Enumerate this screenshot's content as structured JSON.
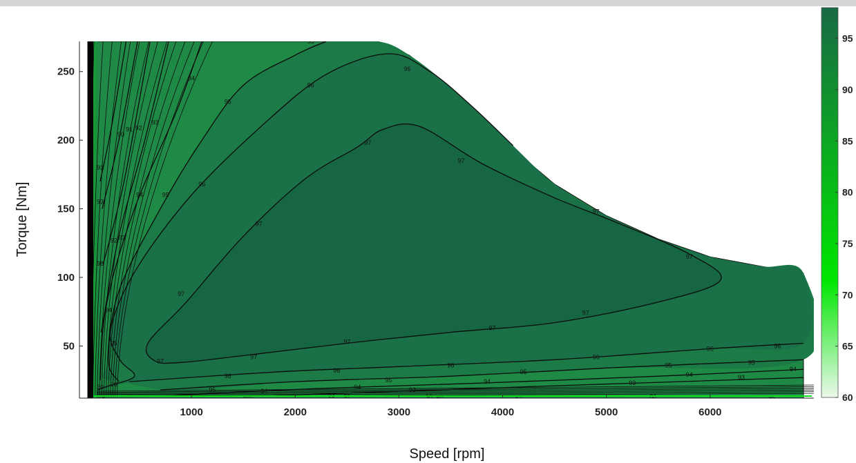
{
  "chart_data": {
    "type": "contour",
    "xlabel": "Speed [rpm]",
    "ylabel": "Torque [Nm]",
    "xlim": [
      0,
      7000
    ],
    "ylim": [
      12,
      272
    ],
    "xticks": [
      1000,
      2000,
      3000,
      4000,
      5000,
      6000
    ],
    "yticks": [
      50,
      100,
      150,
      200,
      250
    ],
    "colorbar": {
      "range": [
        60,
        98
      ],
      "ticks": [
        60,
        65,
        70,
        75,
        80,
        85,
        90,
        95
      ],
      "colors": {
        "low": "#eaf8ea",
        "mid": "#00e600",
        "high": "#186944"
      }
    },
    "max_torque_curve": [
      {
        "x": 0,
        "y": 272
      },
      {
        "x": 2800,
        "y": 272
      },
      {
        "x": 3100,
        "y": 262
      },
      {
        "x": 3500,
        "y": 238
      },
      {
        "x": 4000,
        "y": 200
      },
      {
        "x": 4500,
        "y": 168
      },
      {
        "x": 5000,
        "y": 145
      },
      {
        "x": 5500,
        "y": 128
      },
      {
        "x": 6000,
        "y": 115
      },
      {
        "x": 6500,
        "y": 108
      },
      {
        "x": 6900,
        "y": 103
      }
    ],
    "contours": [
      {
        "level": 97,
        "points": [
          {
            "x": 2600,
            "y": 195
          },
          {
            "x": 2850,
            "y": 208
          },
          {
            "x": 3200,
            "y": 210
          },
          {
            "x": 3800,
            "y": 183
          },
          {
            "x": 4500,
            "y": 158
          },
          {
            "x": 5100,
            "y": 140
          },
          {
            "x": 5800,
            "y": 117
          },
          {
            "x": 6100,
            "y": 98
          },
          {
            "x": 5500,
            "y": 82
          },
          {
            "x": 4500,
            "y": 67
          },
          {
            "x": 3500,
            "y": 60
          },
          {
            "x": 2500,
            "y": 52
          },
          {
            "x": 1500,
            "y": 43
          },
          {
            "x": 900,
            "y": 38
          },
          {
            "x": 650,
            "y": 39
          },
          {
            "x": 580,
            "y": 52
          },
          {
            "x": 950,
            "y": 82
          },
          {
            "x": 1500,
            "y": 130
          },
          {
            "x": 2100,
            "y": 172
          },
          {
            "x": 2600,
            "y": 195
          }
        ],
        "labels": [
          {
            "x": 2700,
            "y": 198
          },
          {
            "x": 3600,
            "y": 185
          },
          {
            "x": 4900,
            "y": 148
          },
          {
            "x": 5800,
            "y": 115
          },
          {
            "x": 4800,
            "y": 74
          },
          {
            "x": 3900,
            "y": 63
          },
          {
            "x": 2500,
            "y": 53
          },
          {
            "x": 1600,
            "y": 42
          },
          {
            "x": 700,
            "y": 39
          },
          {
            "x": 900,
            "y": 88
          },
          {
            "x": 1650,
            "y": 139
          }
        ]
      },
      {
        "level": 96,
        "points": [
          {
            "x": 100,
            "y": 18
          },
          {
            "x": 200,
            "y": 21
          },
          {
            "x": 450,
            "y": 28
          },
          {
            "x": 310,
            "y": 40
          },
          {
            "x": 220,
            "y": 62
          },
          {
            "x": 460,
            "y": 105
          },
          {
            "x": 1000,
            "y": 160
          },
          {
            "x": 1700,
            "y": 212
          },
          {
            "x": 2300,
            "y": 248
          },
          {
            "x": 2900,
            "y": 263
          },
          {
            "x": 3300,
            "y": 250
          },
          {
            "x": 3700,
            "y": 225
          },
          {
            "x": 4100,
            "y": 196
          }
        ],
        "labels": [
          {
            "x": 250,
            "y": 22
          },
          {
            "x": 1100,
            "y": 168
          },
          {
            "x": 2150,
            "y": 240
          },
          {
            "x": 3080,
            "y": 252
          }
        ]
      },
      {
        "level": 96,
        "points": [
          {
            "x": 400,
            "y": 24
          },
          {
            "x": 1800,
            "y": 31
          },
          {
            "x": 3000,
            "y": 35
          },
          {
            "x": 4500,
            "y": 40
          },
          {
            "x": 6000,
            "y": 48
          },
          {
            "x": 6900,
            "y": 52
          }
        ],
        "labels": [
          {
            "x": 1350,
            "y": 28
          },
          {
            "x": 2400,
            "y": 32
          },
          {
            "x": 3500,
            "y": 36
          },
          {
            "x": 4900,
            "y": 42
          },
          {
            "x": 6000,
            "y": 48
          },
          {
            "x": 6650,
            "y": 50
          }
        ]
      },
      {
        "level": 95,
        "points": [
          {
            "x": 300,
            "y": 24
          },
          {
            "x": 200,
            "y": 40
          },
          {
            "x": 300,
            "y": 90
          },
          {
            "x": 700,
            "y": 150
          },
          {
            "x": 1100,
            "y": 200
          },
          {
            "x": 1500,
            "y": 240
          },
          {
            "x": 2000,
            "y": 262
          },
          {
            "x": 2300,
            "y": 272
          }
        ],
        "labels": [
          {
            "x": 250,
            "y": 52
          },
          {
            "x": 750,
            "y": 160
          },
          {
            "x": 1350,
            "y": 228
          },
          {
            "x": 2150,
            "y": 272
          }
        ]
      },
      {
        "level": 95,
        "points": [
          {
            "x": 700,
            "y": 18
          },
          {
            "x": 2000,
            "y": 24
          },
          {
            "x": 3500,
            "y": 28
          },
          {
            "x": 5000,
            "y": 34
          },
          {
            "x": 6900,
            "y": 40
          }
        ],
        "labels": [
          {
            "x": 1200,
            "y": 18
          },
          {
            "x": 2900,
            "y": 25
          },
          {
            "x": 4200,
            "y": 31
          },
          {
            "x": 5600,
            "y": 36
          },
          {
            "x": 6400,
            "y": 38
          }
        ]
      },
      {
        "level": 94,
        "points": [
          {
            "x": 120,
            "y": 25
          },
          {
            "x": 180,
            "y": 80
          },
          {
            "x": 450,
            "y": 150
          },
          {
            "x": 850,
            "y": 220
          },
          {
            "x": 1100,
            "y": 272
          }
        ],
        "labels": [
          {
            "x": 200,
            "y": 76
          },
          {
            "x": 500,
            "y": 160
          },
          {
            "x": 1000,
            "y": 245
          }
        ]
      },
      {
        "level": 94,
        "points": [
          {
            "x": 800,
            "y": 14
          },
          {
            "x": 2200,
            "y": 19
          },
          {
            "x": 3800,
            "y": 23
          },
          {
            "x": 5500,
            "y": 28
          },
          {
            "x": 6900,
            "y": 33
          }
        ],
        "labels": [
          {
            "x": 1700,
            "y": 17
          },
          {
            "x": 2600,
            "y": 20
          },
          {
            "x": 3850,
            "y": 24
          },
          {
            "x": 5800,
            "y": 29
          },
          {
            "x": 6800,
            "y": 33
          }
        ]
      },
      {
        "level": 93,
        "points": [
          {
            "x": 130,
            "y": 60
          },
          {
            "x": 300,
            "y": 130
          },
          {
            "x": 550,
            "y": 200
          },
          {
            "x": 780,
            "y": 272
          }
        ],
        "labels": [
          {
            "x": 330,
            "y": 129
          },
          {
            "x": 650,
            "y": 213
          }
        ]
      },
      {
        "level": 93,
        "points": [
          {
            "x": 1500,
            "y": 13
          },
          {
            "x": 3000,
            "y": 17
          },
          {
            "x": 4500,
            "y": 21
          },
          {
            "x": 6900,
            "y": 27
          }
        ],
        "labels": [
          {
            "x": 2350,
            "y": 14
          },
          {
            "x": 3130,
            "y": 18
          },
          {
            "x": 5250,
            "y": 23
          },
          {
            "x": 6300,
            "y": 27
          }
        ]
      },
      {
        "level": 92,
        "points": [
          {
            "x": 150,
            "y": 110
          },
          {
            "x": 350,
            "y": 170
          },
          {
            "x": 600,
            "y": 272
          }
        ],
        "labels": [
          {
            "x": 250,
            "y": 127
          },
          {
            "x": 490,
            "y": 209
          }
        ]
      },
      {
        "level": 91,
        "points": [
          {
            "x": 140,
            "y": 150
          },
          {
            "x": 300,
            "y": 200
          },
          {
            "x": 480,
            "y": 272
          }
        ],
        "labels": [
          {
            "x": 400,
            "y": 208
          }
        ]
      },
      {
        "level": 90,
        "points": [
          {
            "x": 120,
            "y": 170
          },
          {
            "x": 230,
            "y": 210
          },
          {
            "x": 370,
            "y": 272
          }
        ],
        "labels": [
          {
            "x": 320,
            "y": 204
          }
        ]
      }
    ],
    "low_edge_labels": [
      {
        "x": 120,
        "y": 20,
        "text": "60"
      },
      {
        "x": 150,
        "y": 12,
        "text": "8"
      },
      {
        "x": 2500,
        "y": 13,
        "text": "91"
      },
      {
        "x": 3390,
        "y": 12,
        "text": "89"
      },
      {
        "x": 3290,
        "y": 13,
        "text": "90"
      },
      {
        "x": 4150,
        "y": 12,
        "text": "87"
      },
      {
        "x": 5450,
        "y": 13,
        "text": "86"
      },
      {
        "x": 6600,
        "y": 12,
        "text": "86"
      },
      {
        "x": 120,
        "y": 155,
        "text": "93"
      },
      {
        "x": 120,
        "y": 110,
        "text": "98"
      },
      {
        "x": 120,
        "y": 180,
        "text": "93"
      }
    ]
  }
}
